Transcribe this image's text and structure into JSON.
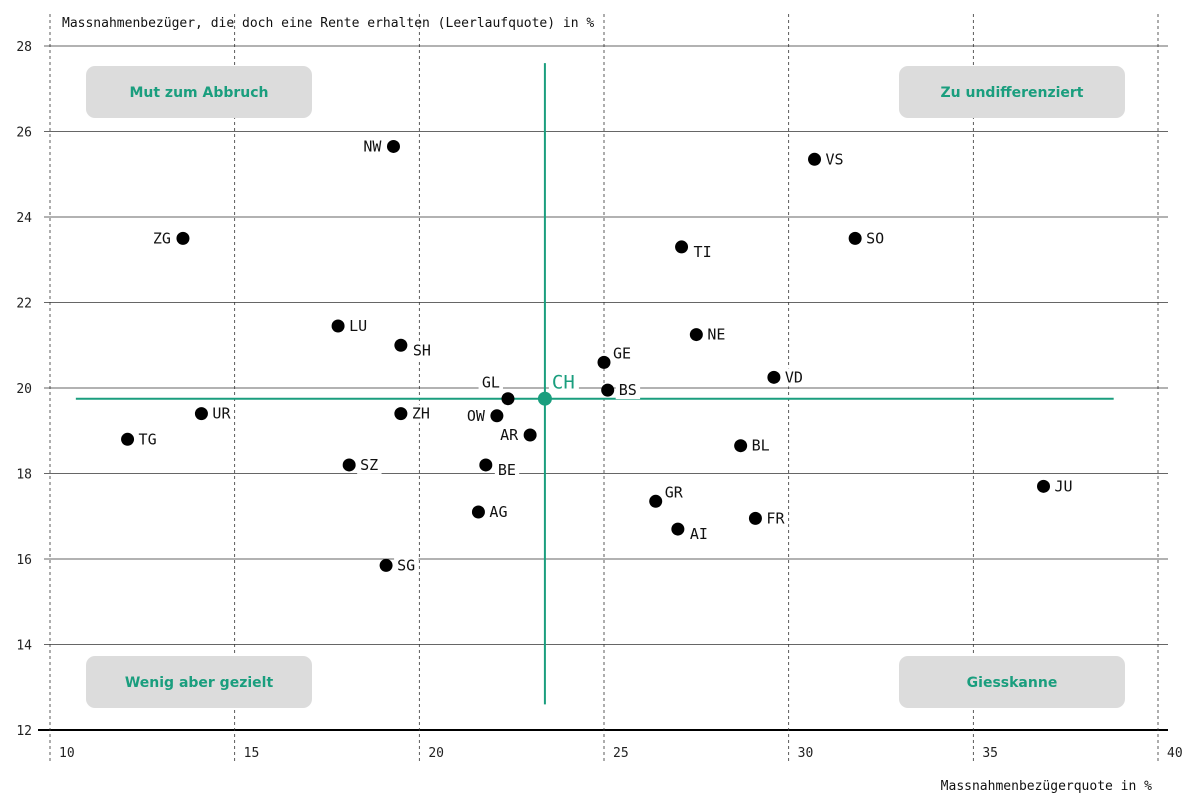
{
  "colors": {
    "accent": "#1a9e7e",
    "point": "#000000",
    "box": "#dcdcdc",
    "grid": "#333333"
  },
  "chart_data": {
    "type": "scatter",
    "title": "",
    "ylabel": "Massnahmenbezüger, die doch eine Rente erhalten (Leerlaufquote) in %",
    "xlabel": "Massnahmenbezügerquote in %",
    "xlim": [
      10,
      40
    ],
    "ylim": [
      12,
      28
    ],
    "xticks": [
      10,
      15,
      20,
      25,
      30,
      35,
      40
    ],
    "yticks": [
      12,
      14,
      16,
      18,
      20,
      22,
      24,
      26,
      28
    ],
    "grid": true,
    "reference": {
      "label": "CH",
      "x": 23.4,
      "y": 19.75,
      "h_from": 10.7,
      "h_to": 38.8,
      "v_from": 12.6,
      "v_to": 27.6
    },
    "quadrants": [
      {
        "key": "tl",
        "label": "Mut zum Abbruch"
      },
      {
        "key": "tr",
        "label": "Zu undifferenziert"
      },
      {
        "key": "bl",
        "label": "Wenig aber gezielt"
      },
      {
        "key": "br",
        "label": "Giesskanne"
      }
    ],
    "points": [
      {
        "label": "NW",
        "x": 19.3,
        "y": 25.65,
        "side": "left"
      },
      {
        "label": "VS",
        "x": 30.7,
        "y": 25.35,
        "side": "right"
      },
      {
        "label": "ZG",
        "x": 13.6,
        "y": 23.5,
        "side": "left"
      },
      {
        "label": "SO",
        "x": 31.8,
        "y": 23.5,
        "side": "right"
      },
      {
        "label": "TI",
        "x": 27.1,
        "y": 23.3,
        "side": "right-low"
      },
      {
        "label": "LU",
        "x": 17.8,
        "y": 21.45,
        "side": "right"
      },
      {
        "label": "NE",
        "x": 27.5,
        "y": 21.25,
        "side": "right"
      },
      {
        "label": "SH",
        "x": 19.5,
        "y": 21.0,
        "side": "right-low"
      },
      {
        "label": "GE",
        "x": 25.0,
        "y": 20.6,
        "side": "right-high"
      },
      {
        "label": "VD",
        "x": 29.6,
        "y": 20.25,
        "side": "right"
      },
      {
        "label": "BS",
        "x": 25.1,
        "y": 19.95,
        "side": "right"
      },
      {
        "label": "GL",
        "x": 22.4,
        "y": 19.75,
        "side": "left-high"
      },
      {
        "label": "UR",
        "x": 14.1,
        "y": 19.4,
        "side": "right"
      },
      {
        "label": "ZH",
        "x": 19.5,
        "y": 19.4,
        "side": "right"
      },
      {
        "label": "OW",
        "x": 22.1,
        "y": 19.35,
        "side": "left"
      },
      {
        "label": "AR",
        "x": 23.0,
        "y": 18.9,
        "side": "left"
      },
      {
        "label": "TG",
        "x": 12.1,
        "y": 18.8,
        "side": "right"
      },
      {
        "label": "BL",
        "x": 28.7,
        "y": 18.65,
        "side": "right"
      },
      {
        "label": "SZ",
        "x": 18.1,
        "y": 18.2,
        "side": "right"
      },
      {
        "label": "BE",
        "x": 21.8,
        "y": 18.2,
        "side": "right-low"
      },
      {
        "label": "JU",
        "x": 36.9,
        "y": 17.7,
        "side": "right"
      },
      {
        "label": "GR",
        "x": 26.4,
        "y": 17.35,
        "side": "right-high"
      },
      {
        "label": "AG",
        "x": 21.6,
        "y": 17.1,
        "side": "right"
      },
      {
        "label": "FR",
        "x": 29.1,
        "y": 16.95,
        "side": "right"
      },
      {
        "label": "AI",
        "x": 27.0,
        "y": 16.7,
        "side": "right-low"
      },
      {
        "label": "SG",
        "x": 19.1,
        "y": 15.85,
        "side": "right"
      }
    ]
  }
}
